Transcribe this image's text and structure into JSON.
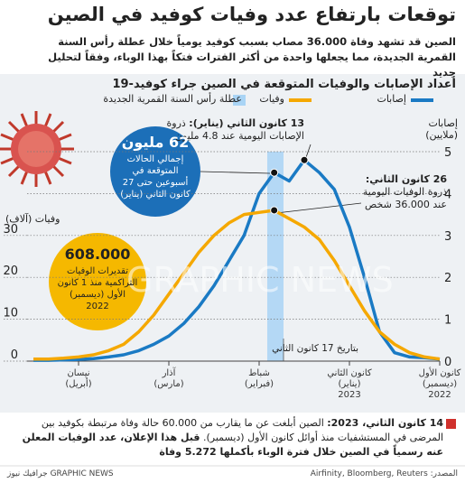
{
  "title": "توقعات بارتفاع عدد وفيات كوفيد في الصين",
  "subtitle": "الصين قد تشهد وفاة 36.000 مصاب بسبب كوفيد يومياً خلال عطلة رأس السنة القمرية الجديدة، مما يجعلها واحدة من أكثر الفترات فتكاً بهذا الوباء، وفقاً لتحليل جديد",
  "chart_data": {
    "type": "line",
    "title": "أعداد الإصابات والوفيات المتوقعة في الصين جراء كوفيد-19",
    "categories": [
      "كانون الأول\n(ديسمبر)\n2022",
      null,
      null,
      null,
      null,
      null,
      "كانون الثاني\n(يناير)\n2023",
      null,
      null,
      null,
      null,
      null,
      "شباط\n(فبراير)",
      null,
      null,
      null,
      null,
      null,
      "آذار\n(مارس)",
      null,
      null,
      null,
      null,
      null,
      "نيسان\n(أبريل)",
      null,
      null,
      null
    ],
    "series": [
      {
        "name": "إصابات",
        "color": "#1a7ac4",
        "axis": "y2",
        "values": [
          0.05,
          0.08,
          0.1,
          0.2,
          0.7,
          2.0,
          3.2,
          4.1,
          4.5,
          4.8,
          4.3,
          4.5,
          4.0,
          3.0,
          2.4,
          1.8,
          1.3,
          0.9,
          0.6,
          0.4,
          0.25,
          0.15,
          0.1,
          0.06,
          0.04,
          0.03,
          0.02,
          0.02
        ]
      },
      {
        "name": "وفيات",
        "color": "#f5a800",
        "values": [
          0.5,
          1,
          2,
          4,
          7,
          12,
          18,
          24,
          29,
          32,
          34,
          36,
          35.5,
          35,
          33,
          30,
          26,
          21,
          16,
          11,
          7,
          4,
          2.5,
          1.5,
          1,
          0.7,
          0.5,
          0.5
        ]
      }
    ],
    "ylabel": "وفيات (آلاف)",
    "y2label": "إصابات (ملايين)",
    "ylim": [
      0,
      50
    ],
    "yticks": [
      0,
      10,
      20,
      30
    ],
    "y2lim": [
      0,
      5
    ],
    "y2ticks": [
      0,
      1,
      2,
      3,
      4,
      5
    ],
    "grid": true,
    "highlight_label": "عطلة رأس السنة القمرية الجديدة",
    "highlight_color": "#a9d4f5",
    "annotations": {
      "infection_peak_date": "13 كانون الثاني (يناير):",
      "infection_peak_text": "ذروة الإصابات اليومية عند 4.8 مليون",
      "death_peak_date": "26 كانون الثاني:",
      "death_peak_text": "ذروة الوفيات اليومية عند 36.000 شخص",
      "jan17": "بتاريخ 17 كانون الثاني"
    }
  },
  "callouts": [
    {
      "value": "62 مليون",
      "text": "إجمالي الحالات المتوقعة في أسبوعين حتى 27 كانون الثاني (يناير)"
    },
    {
      "value": "608.000",
      "text": "تقديرات الوفيات التراكمية منذ 1 كانون الأول (ديسمبر) 2022"
    }
  ],
  "footnote": {
    "date": "14 كانون الثاني، 2023:",
    "text": "الصين أبلغت عن ما يقارب من 60.000 حالة وفاة مرتبطة بكوفيد بين المرضى في المستشفيات منذ أوائل كانون الأول (ديسمبر).",
    "bold": "قبل هذا الإعلان، عدد الوفيات المعلن عنه رسمياً في الصين خلال فترة الوباء بأكملها 5.272 وفاة"
  },
  "source": "المصدر: Airfinity, Bloomberg, Reuters",
  "credit": "GRAPHIC NEWS جرافيك نيوز",
  "watermark": "GRAPHIC NEWS"
}
